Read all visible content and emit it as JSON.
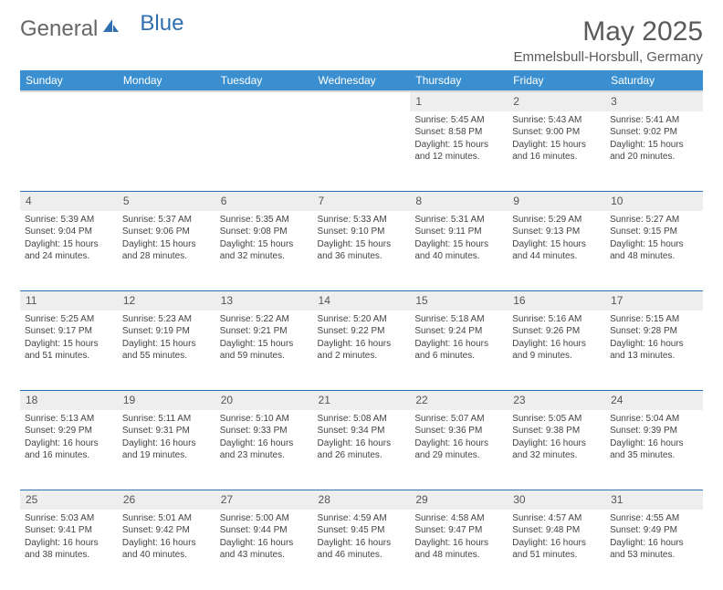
{
  "brand": {
    "part1": "General",
    "part2": "Blue"
  },
  "title": "May 2025",
  "location": "Emmelsbull-Horsbull, Germany",
  "colors": {
    "header_bg": "#3a8fd0",
    "header_text": "#ffffff",
    "daynum_bg": "#eeeeee",
    "row_divider": "#2f6fb0",
    "text": "#444444",
    "logo_blue": "#2f6fb0",
    "logo_gray": "#666666"
  },
  "weekdays": [
    "Sunday",
    "Monday",
    "Tuesday",
    "Wednesday",
    "Thursday",
    "Friday",
    "Saturday"
  ],
  "weeks": [
    {
      "nums": [
        "",
        "",
        "",
        "",
        "1",
        "2",
        "3"
      ],
      "cells": [
        null,
        null,
        null,
        null,
        {
          "sunrise": "5:45 AM",
          "sunset": "8:58 PM",
          "daylight": "15 hours and 12 minutes."
        },
        {
          "sunrise": "5:43 AM",
          "sunset": "9:00 PM",
          "daylight": "15 hours and 16 minutes."
        },
        {
          "sunrise": "5:41 AM",
          "sunset": "9:02 PM",
          "daylight": "15 hours and 20 minutes."
        }
      ]
    },
    {
      "nums": [
        "4",
        "5",
        "6",
        "7",
        "8",
        "9",
        "10"
      ],
      "cells": [
        {
          "sunrise": "5:39 AM",
          "sunset": "9:04 PM",
          "daylight": "15 hours and 24 minutes."
        },
        {
          "sunrise": "5:37 AM",
          "sunset": "9:06 PM",
          "daylight": "15 hours and 28 minutes."
        },
        {
          "sunrise": "5:35 AM",
          "sunset": "9:08 PM",
          "daylight": "15 hours and 32 minutes."
        },
        {
          "sunrise": "5:33 AM",
          "sunset": "9:10 PM",
          "daylight": "15 hours and 36 minutes."
        },
        {
          "sunrise": "5:31 AM",
          "sunset": "9:11 PM",
          "daylight": "15 hours and 40 minutes."
        },
        {
          "sunrise": "5:29 AM",
          "sunset": "9:13 PM",
          "daylight": "15 hours and 44 minutes."
        },
        {
          "sunrise": "5:27 AM",
          "sunset": "9:15 PM",
          "daylight": "15 hours and 48 minutes."
        }
      ]
    },
    {
      "nums": [
        "11",
        "12",
        "13",
        "14",
        "15",
        "16",
        "17"
      ],
      "cells": [
        {
          "sunrise": "5:25 AM",
          "sunset": "9:17 PM",
          "daylight": "15 hours and 51 minutes."
        },
        {
          "sunrise": "5:23 AM",
          "sunset": "9:19 PM",
          "daylight": "15 hours and 55 minutes."
        },
        {
          "sunrise": "5:22 AM",
          "sunset": "9:21 PM",
          "daylight": "15 hours and 59 minutes."
        },
        {
          "sunrise": "5:20 AM",
          "sunset": "9:22 PM",
          "daylight": "16 hours and 2 minutes."
        },
        {
          "sunrise": "5:18 AM",
          "sunset": "9:24 PM",
          "daylight": "16 hours and 6 minutes."
        },
        {
          "sunrise": "5:16 AM",
          "sunset": "9:26 PM",
          "daylight": "16 hours and 9 minutes."
        },
        {
          "sunrise": "5:15 AM",
          "sunset": "9:28 PM",
          "daylight": "16 hours and 13 minutes."
        }
      ]
    },
    {
      "nums": [
        "18",
        "19",
        "20",
        "21",
        "22",
        "23",
        "24"
      ],
      "cells": [
        {
          "sunrise": "5:13 AM",
          "sunset": "9:29 PM",
          "daylight": "16 hours and 16 minutes."
        },
        {
          "sunrise": "5:11 AM",
          "sunset": "9:31 PM",
          "daylight": "16 hours and 19 minutes."
        },
        {
          "sunrise": "5:10 AM",
          "sunset": "9:33 PM",
          "daylight": "16 hours and 23 minutes."
        },
        {
          "sunrise": "5:08 AM",
          "sunset": "9:34 PM",
          "daylight": "16 hours and 26 minutes."
        },
        {
          "sunrise": "5:07 AM",
          "sunset": "9:36 PM",
          "daylight": "16 hours and 29 minutes."
        },
        {
          "sunrise": "5:05 AM",
          "sunset": "9:38 PM",
          "daylight": "16 hours and 32 minutes."
        },
        {
          "sunrise": "5:04 AM",
          "sunset": "9:39 PM",
          "daylight": "16 hours and 35 minutes."
        }
      ]
    },
    {
      "nums": [
        "25",
        "26",
        "27",
        "28",
        "29",
        "30",
        "31"
      ],
      "cells": [
        {
          "sunrise": "5:03 AM",
          "sunset": "9:41 PM",
          "daylight": "16 hours and 38 minutes."
        },
        {
          "sunrise": "5:01 AM",
          "sunset": "9:42 PM",
          "daylight": "16 hours and 40 minutes."
        },
        {
          "sunrise": "5:00 AM",
          "sunset": "9:44 PM",
          "daylight": "16 hours and 43 minutes."
        },
        {
          "sunrise": "4:59 AM",
          "sunset": "9:45 PM",
          "daylight": "16 hours and 46 minutes."
        },
        {
          "sunrise": "4:58 AM",
          "sunset": "9:47 PM",
          "daylight": "16 hours and 48 minutes."
        },
        {
          "sunrise": "4:57 AM",
          "sunset": "9:48 PM",
          "daylight": "16 hours and 51 minutes."
        },
        {
          "sunrise": "4:55 AM",
          "sunset": "9:49 PM",
          "daylight": "16 hours and 53 minutes."
        }
      ]
    }
  ],
  "labels": {
    "sunrise": "Sunrise:",
    "sunset": "Sunset:",
    "daylight": "Daylight:"
  }
}
